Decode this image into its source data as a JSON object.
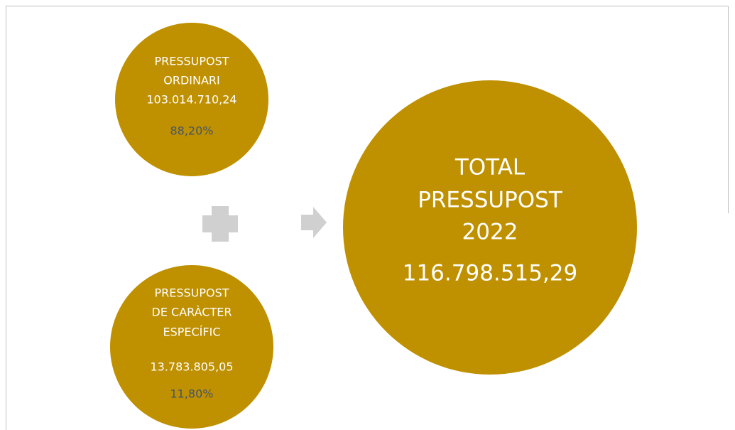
{
  "nodes": [
    {
      "label": [
        "PRESSUPOST",
        "ORDINARI"
      ],
      "amount": "103.014.710,24",
      "percent": "88,20%"
    },
    {
      "label": [
        "PRESSUPOST",
        "DE CARÀCTER",
        "ESPECÍFIC"
      ],
      "amount": "13.783.805,05",
      "percent": "11,80%"
    },
    {
      "label": [
        "TOTAL",
        "PRESSUPOST",
        "2022"
      ],
      "amount": "116.798.515,29"
    }
  ]
}
